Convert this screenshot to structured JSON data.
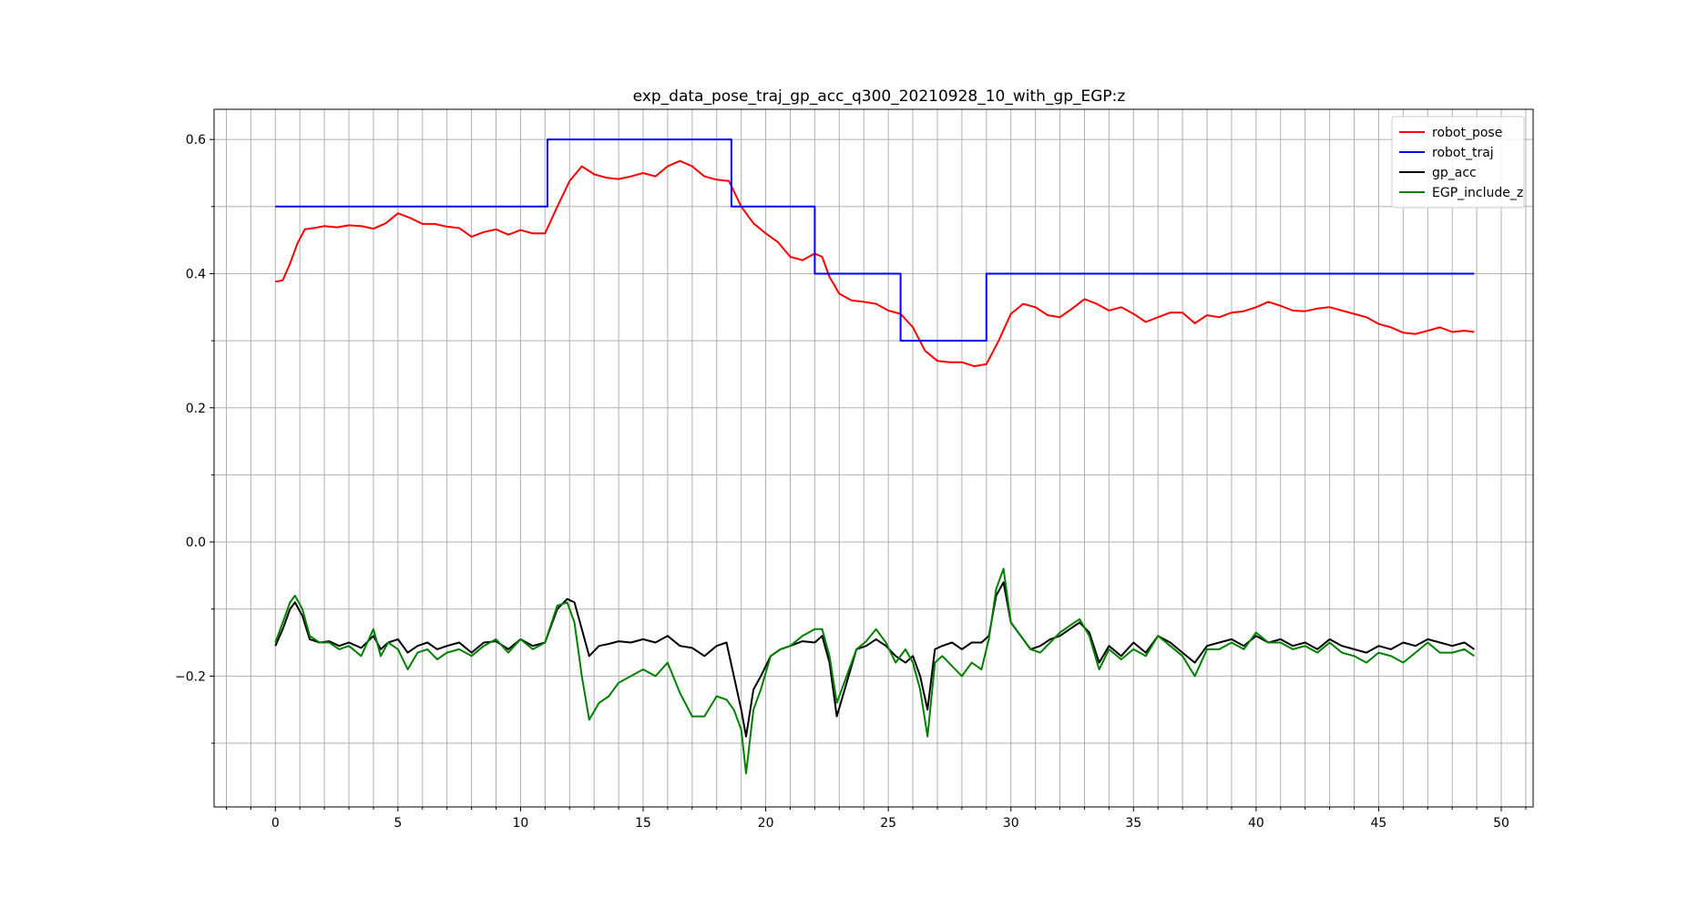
{
  "chart_data": {
    "type": "line",
    "title": "exp_data_pose_traj_gp_acc_q300_20210928_10_with_gp_EGP:z",
    "xlabel": "",
    "ylabel": "",
    "xlim": [
      -2.5,
      51.3
    ],
    "ylim": [
      -0.395,
      0.645
    ],
    "grid": true,
    "legend_position": "top-right",
    "xticks": [
      0,
      5,
      10,
      15,
      20,
      25,
      30,
      35,
      40,
      45,
      50
    ],
    "xticks_minor": [
      -2,
      -1,
      1,
      2,
      3,
      4,
      6,
      7,
      8,
      9,
      11,
      12,
      13,
      14,
      16,
      17,
      18,
      19,
      21,
      22,
      23,
      24,
      26,
      27,
      28,
      29,
      31,
      32,
      33,
      34,
      36,
      37,
      38,
      39,
      41,
      42,
      43,
      44,
      46,
      47,
      48,
      49,
      51
    ],
    "yticks": [
      -0.2,
      0.0,
      0.2,
      0.4,
      0.6
    ],
    "yticks_minor": [
      -0.3,
      -0.1,
      0.1,
      0.3,
      0.5
    ],
    "series": [
      {
        "name": "robot_pose",
        "color": "#ff0000",
        "x": [
          0,
          0.3,
          0.6,
          0.9,
          1.2,
          1.6,
          2.0,
          2.5,
          3.0,
          3.5,
          4.0,
          4.5,
          5.0,
          5.5,
          6.0,
          6.5,
          7.0,
          7.5,
          8.0,
          8.5,
          9.0,
          9.5,
          10.0,
          10.5,
          11.0,
          11.5,
          12.0,
          12.5,
          13.0,
          13.5,
          14.0,
          14.5,
          15.0,
          15.5,
          16.0,
          16.5,
          17.0,
          17.5,
          18.0,
          18.5,
          19.0,
          19.5,
          20.0,
          20.5,
          21.0,
          21.5,
          22.0,
          22.3,
          22.6,
          23.0,
          23.5,
          24.0,
          24.5,
          25.0,
          25.5,
          26.0,
          26.5,
          27.0,
          27.5,
          28.0,
          28.5,
          29.0,
          29.5,
          30.0,
          30.5,
          31.0,
          31.5,
          32.0,
          32.5,
          33.0,
          33.5,
          34.0,
          34.5,
          35.0,
          35.5,
          36.0,
          36.5,
          37.0,
          37.5,
          38.0,
          38.5,
          39.0,
          39.5,
          40.0,
          40.5,
          41.0,
          41.5,
          42.0,
          42.5,
          43.0,
          43.5,
          44.0,
          44.5,
          45.0,
          45.5,
          46.0,
          46.5,
          47.0,
          47.5,
          48.0,
          48.5,
          48.9
        ],
        "values": [
          0.388,
          0.39,
          0.415,
          0.445,
          0.466,
          0.468,
          0.471,
          0.469,
          0.472,
          0.471,
          0.467,
          0.475,
          0.49,
          0.483,
          0.474,
          0.474,
          0.47,
          0.468,
          0.455,
          0.462,
          0.466,
          0.458,
          0.465,
          0.46,
          0.46,
          0.5,
          0.538,
          0.56,
          0.548,
          0.543,
          0.541,
          0.545,
          0.55,
          0.545,
          0.56,
          0.568,
          0.56,
          0.545,
          0.54,
          0.538,
          0.5,
          0.475,
          0.46,
          0.447,
          0.425,
          0.42,
          0.43,
          0.425,
          0.395,
          0.37,
          0.36,
          0.358,
          0.355,
          0.345,
          0.34,
          0.32,
          0.285,
          0.27,
          0.268,
          0.268,
          0.262,
          0.265,
          0.3,
          0.34,
          0.355,
          0.35,
          0.338,
          0.335,
          0.348,
          0.362,
          0.355,
          0.345,
          0.35,
          0.34,
          0.328,
          0.335,
          0.342,
          0.342,
          0.326,
          0.338,
          0.335,
          0.342,
          0.344,
          0.35,
          0.358,
          0.352,
          0.345,
          0.344,
          0.348,
          0.35,
          0.345,
          0.34,
          0.335,
          0.325,
          0.32,
          0.312,
          0.31,
          0.315,
          0.32,
          0.313,
          0.315,
          0.313
        ]
      },
      {
        "name": "robot_traj",
        "color": "#0000ff",
        "x": [
          0,
          11.1,
          11.1,
          18.6,
          18.6,
          22.0,
          22.0,
          25.5,
          25.5,
          29.0,
          29.0,
          48.9
        ],
        "values": [
          0.5,
          0.5,
          0.6,
          0.6,
          0.5,
          0.5,
          0.4,
          0.4,
          0.3,
          0.3,
          0.4,
          0.4
        ]
      },
      {
        "name": "gp_acc",
        "color": "#000000",
        "x": [
          0,
          0.3,
          0.6,
          0.8,
          1.1,
          1.4,
          1.8,
          2.2,
          2.6,
          3.0,
          3.5,
          4.0,
          4.3,
          4.6,
          5.0,
          5.4,
          5.8,
          6.2,
          6.6,
          7.0,
          7.5,
          8.0,
          8.5,
          9.0,
          9.5,
          10.0,
          10.5,
          11.0,
          11.5,
          11.9,
          12.2,
          12.5,
          12.8,
          13.2,
          13.6,
          14.0,
          14.5,
          15.0,
          15.5,
          16.0,
          16.5,
          17.0,
          17.5,
          18.0,
          18.4,
          18.7,
          19.0,
          19.2,
          19.5,
          19.8,
          20.2,
          20.6,
          21.0,
          21.5,
          22.0,
          22.3,
          22.6,
          22.9,
          23.3,
          23.7,
          24.1,
          24.5,
          24.9,
          25.3,
          25.7,
          26.0,
          26.3,
          26.6,
          26.9,
          27.2,
          27.6,
          28.0,
          28.4,
          28.8,
          29.1,
          29.4,
          29.7,
          30.0,
          30.4,
          30.8,
          31.2,
          31.6,
          32.0,
          32.4,
          32.8,
          33.2,
          33.6,
          34.0,
          34.5,
          35.0,
          35.5,
          36.0,
          36.5,
          37.0,
          37.5,
          38.0,
          38.5,
          39.0,
          39.5,
          40.0,
          40.5,
          41.0,
          41.5,
          42.0,
          42.5,
          43.0,
          43.5,
          44.0,
          44.5,
          45.0,
          45.5,
          46.0,
          46.5,
          47.0,
          47.5,
          48.0,
          48.5,
          48.9
        ],
        "values": [
          -0.155,
          -0.13,
          -0.1,
          -0.09,
          -0.11,
          -0.145,
          -0.15,
          -0.148,
          -0.155,
          -0.15,
          -0.158,
          -0.14,
          -0.16,
          -0.15,
          -0.145,
          -0.165,
          -0.155,
          -0.15,
          -0.16,
          -0.155,
          -0.15,
          -0.165,
          -0.15,
          -0.148,
          -0.16,
          -0.145,
          -0.155,
          -0.15,
          -0.1,
          -0.085,
          -0.09,
          -0.13,
          -0.17,
          -0.155,
          -0.152,
          -0.148,
          -0.15,
          -0.145,
          -0.15,
          -0.14,
          -0.155,
          -0.158,
          -0.17,
          -0.155,
          -0.15,
          -0.2,
          -0.25,
          -0.29,
          -0.22,
          -0.2,
          -0.17,
          -0.16,
          -0.155,
          -0.148,
          -0.15,
          -0.14,
          -0.18,
          -0.26,
          -0.21,
          -0.16,
          -0.155,
          -0.145,
          -0.155,
          -0.17,
          -0.18,
          -0.17,
          -0.2,
          -0.25,
          -0.16,
          -0.155,
          -0.15,
          -0.16,
          -0.15,
          -0.15,
          -0.14,
          -0.08,
          -0.06,
          -0.12,
          -0.14,
          -0.16,
          -0.155,
          -0.145,
          -0.14,
          -0.13,
          -0.12,
          -0.135,
          -0.18,
          -0.155,
          -0.17,
          -0.15,
          -0.165,
          -0.14,
          -0.15,
          -0.165,
          -0.18,
          -0.155,
          -0.15,
          -0.145,
          -0.155,
          -0.14,
          -0.15,
          -0.145,
          -0.155,
          -0.15,
          -0.16,
          -0.145,
          -0.155,
          -0.16,
          -0.165,
          -0.155,
          -0.16,
          -0.15,
          -0.155,
          -0.145,
          -0.15,
          -0.155,
          -0.15,
          -0.16
        ]
      },
      {
        "name": "EGP_include_z",
        "color": "#008000",
        "x": [
          0,
          0.3,
          0.6,
          0.8,
          1.1,
          1.4,
          1.8,
          2.2,
          2.6,
          3.0,
          3.5,
          4.0,
          4.3,
          4.6,
          5.0,
          5.4,
          5.8,
          6.2,
          6.6,
          7.0,
          7.5,
          8.0,
          8.5,
          9.0,
          9.5,
          10.0,
          10.5,
          11.0,
          11.5,
          11.9,
          12.2,
          12.5,
          12.8,
          13.2,
          13.6,
          14.0,
          14.5,
          15.0,
          15.5,
          16.0,
          16.5,
          17.0,
          17.5,
          18.0,
          18.4,
          18.7,
          19.0,
          19.2,
          19.5,
          19.8,
          20.2,
          20.6,
          21.0,
          21.5,
          22.0,
          22.3,
          22.6,
          22.9,
          23.3,
          23.7,
          24.1,
          24.5,
          24.9,
          25.3,
          25.7,
          26.0,
          26.3,
          26.6,
          26.9,
          27.2,
          27.6,
          28.0,
          28.4,
          28.8,
          29.1,
          29.4,
          29.7,
          30.0,
          30.4,
          30.8,
          31.2,
          31.6,
          32.0,
          32.4,
          32.8,
          33.2,
          33.6,
          34.0,
          34.5,
          35.0,
          35.5,
          36.0,
          36.5,
          37.0,
          37.5,
          38.0,
          38.5,
          39.0,
          39.5,
          40.0,
          40.5,
          41.0,
          41.5,
          42.0,
          42.5,
          43.0,
          43.5,
          44.0,
          44.5,
          45.0,
          45.5,
          46.0,
          46.5,
          47.0,
          47.5,
          48.0,
          48.5,
          48.9
        ],
        "values": [
          -0.15,
          -0.12,
          -0.09,
          -0.08,
          -0.1,
          -0.14,
          -0.15,
          -0.15,
          -0.16,
          -0.155,
          -0.17,
          -0.13,
          -0.17,
          -0.15,
          -0.16,
          -0.19,
          -0.165,
          -0.16,
          -0.175,
          -0.165,
          -0.16,
          -0.17,
          -0.155,
          -0.145,
          -0.165,
          -0.145,
          -0.16,
          -0.15,
          -0.095,
          -0.09,
          -0.12,
          -0.2,
          -0.265,
          -0.24,
          -0.23,
          -0.21,
          -0.2,
          -0.19,
          -0.2,
          -0.18,
          -0.225,
          -0.26,
          -0.26,
          -0.23,
          -0.235,
          -0.25,
          -0.28,
          -0.345,
          -0.25,
          -0.22,
          -0.17,
          -0.16,
          -0.155,
          -0.14,
          -0.13,
          -0.13,
          -0.17,
          -0.24,
          -0.2,
          -0.16,
          -0.148,
          -0.13,
          -0.15,
          -0.18,
          -0.16,
          -0.18,
          -0.22,
          -0.29,
          -0.18,
          -0.17,
          -0.185,
          -0.2,
          -0.18,
          -0.19,
          -0.145,
          -0.07,
          -0.04,
          -0.12,
          -0.14,
          -0.16,
          -0.165,
          -0.15,
          -0.135,
          -0.125,
          -0.115,
          -0.14,
          -0.19,
          -0.16,
          -0.175,
          -0.16,
          -0.17,
          -0.14,
          -0.155,
          -0.17,
          -0.2,
          -0.16,
          -0.16,
          -0.15,
          -0.16,
          -0.135,
          -0.15,
          -0.15,
          -0.16,
          -0.155,
          -0.165,
          -0.15,
          -0.165,
          -0.17,
          -0.18,
          -0.165,
          -0.17,
          -0.18,
          -0.165,
          -0.15,
          -0.165,
          -0.165,
          -0.16,
          -0.17
        ]
      }
    ]
  }
}
